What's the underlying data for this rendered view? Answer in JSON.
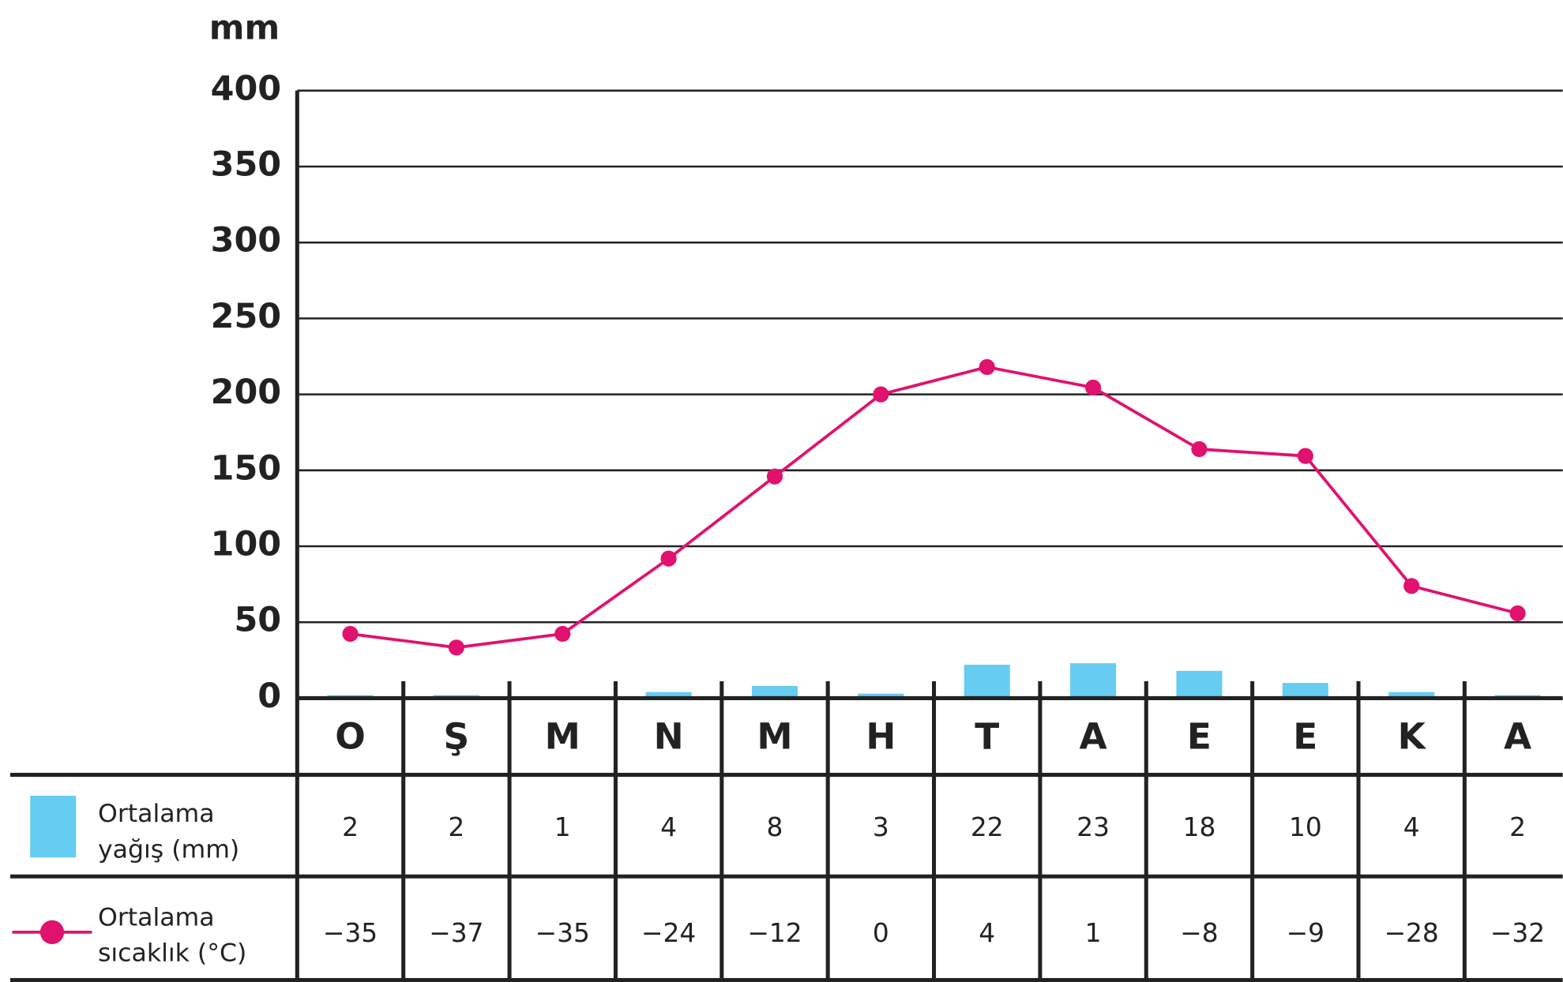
{
  "chart_data": {
    "type": "bar-line",
    "y_axis_label": "mm",
    "categories": [
      "O",
      "Ş",
      "M",
      "N",
      "M",
      "H",
      "T",
      "A",
      "E",
      "E",
      "K",
      "A"
    ],
    "ylim": [
      0,
      400
    ],
    "yticks": [
      0,
      50,
      100,
      150,
      200,
      250,
      300,
      350,
      400
    ],
    "y2lim": [
      -44.4,
      44.4
    ],
    "grid": true,
    "series": [
      {
        "name": "Ortalama yağış (mm)",
        "type": "bar",
        "color": "#66ccf2",
        "values": [
          2,
          2,
          1,
          4,
          8,
          3,
          22,
          23,
          18,
          10,
          4,
          2
        ]
      },
      {
        "name": "Ortalama sıcaklık (°C)",
        "type": "line",
        "axis": "y2",
        "color": "#e0126e",
        "values": [
          -35,
          -37,
          -35,
          -24,
          -12,
          0,
          4,
          1,
          -8,
          -9,
          -28,
          -32
        ],
        "value_labels": [
          "−35",
          "−37",
          "−35",
          "−24",
          "−12",
          "0",
          "4",
          "1",
          "−8",
          "−9",
          "−28",
          "−32"
        ]
      }
    ]
  }
}
